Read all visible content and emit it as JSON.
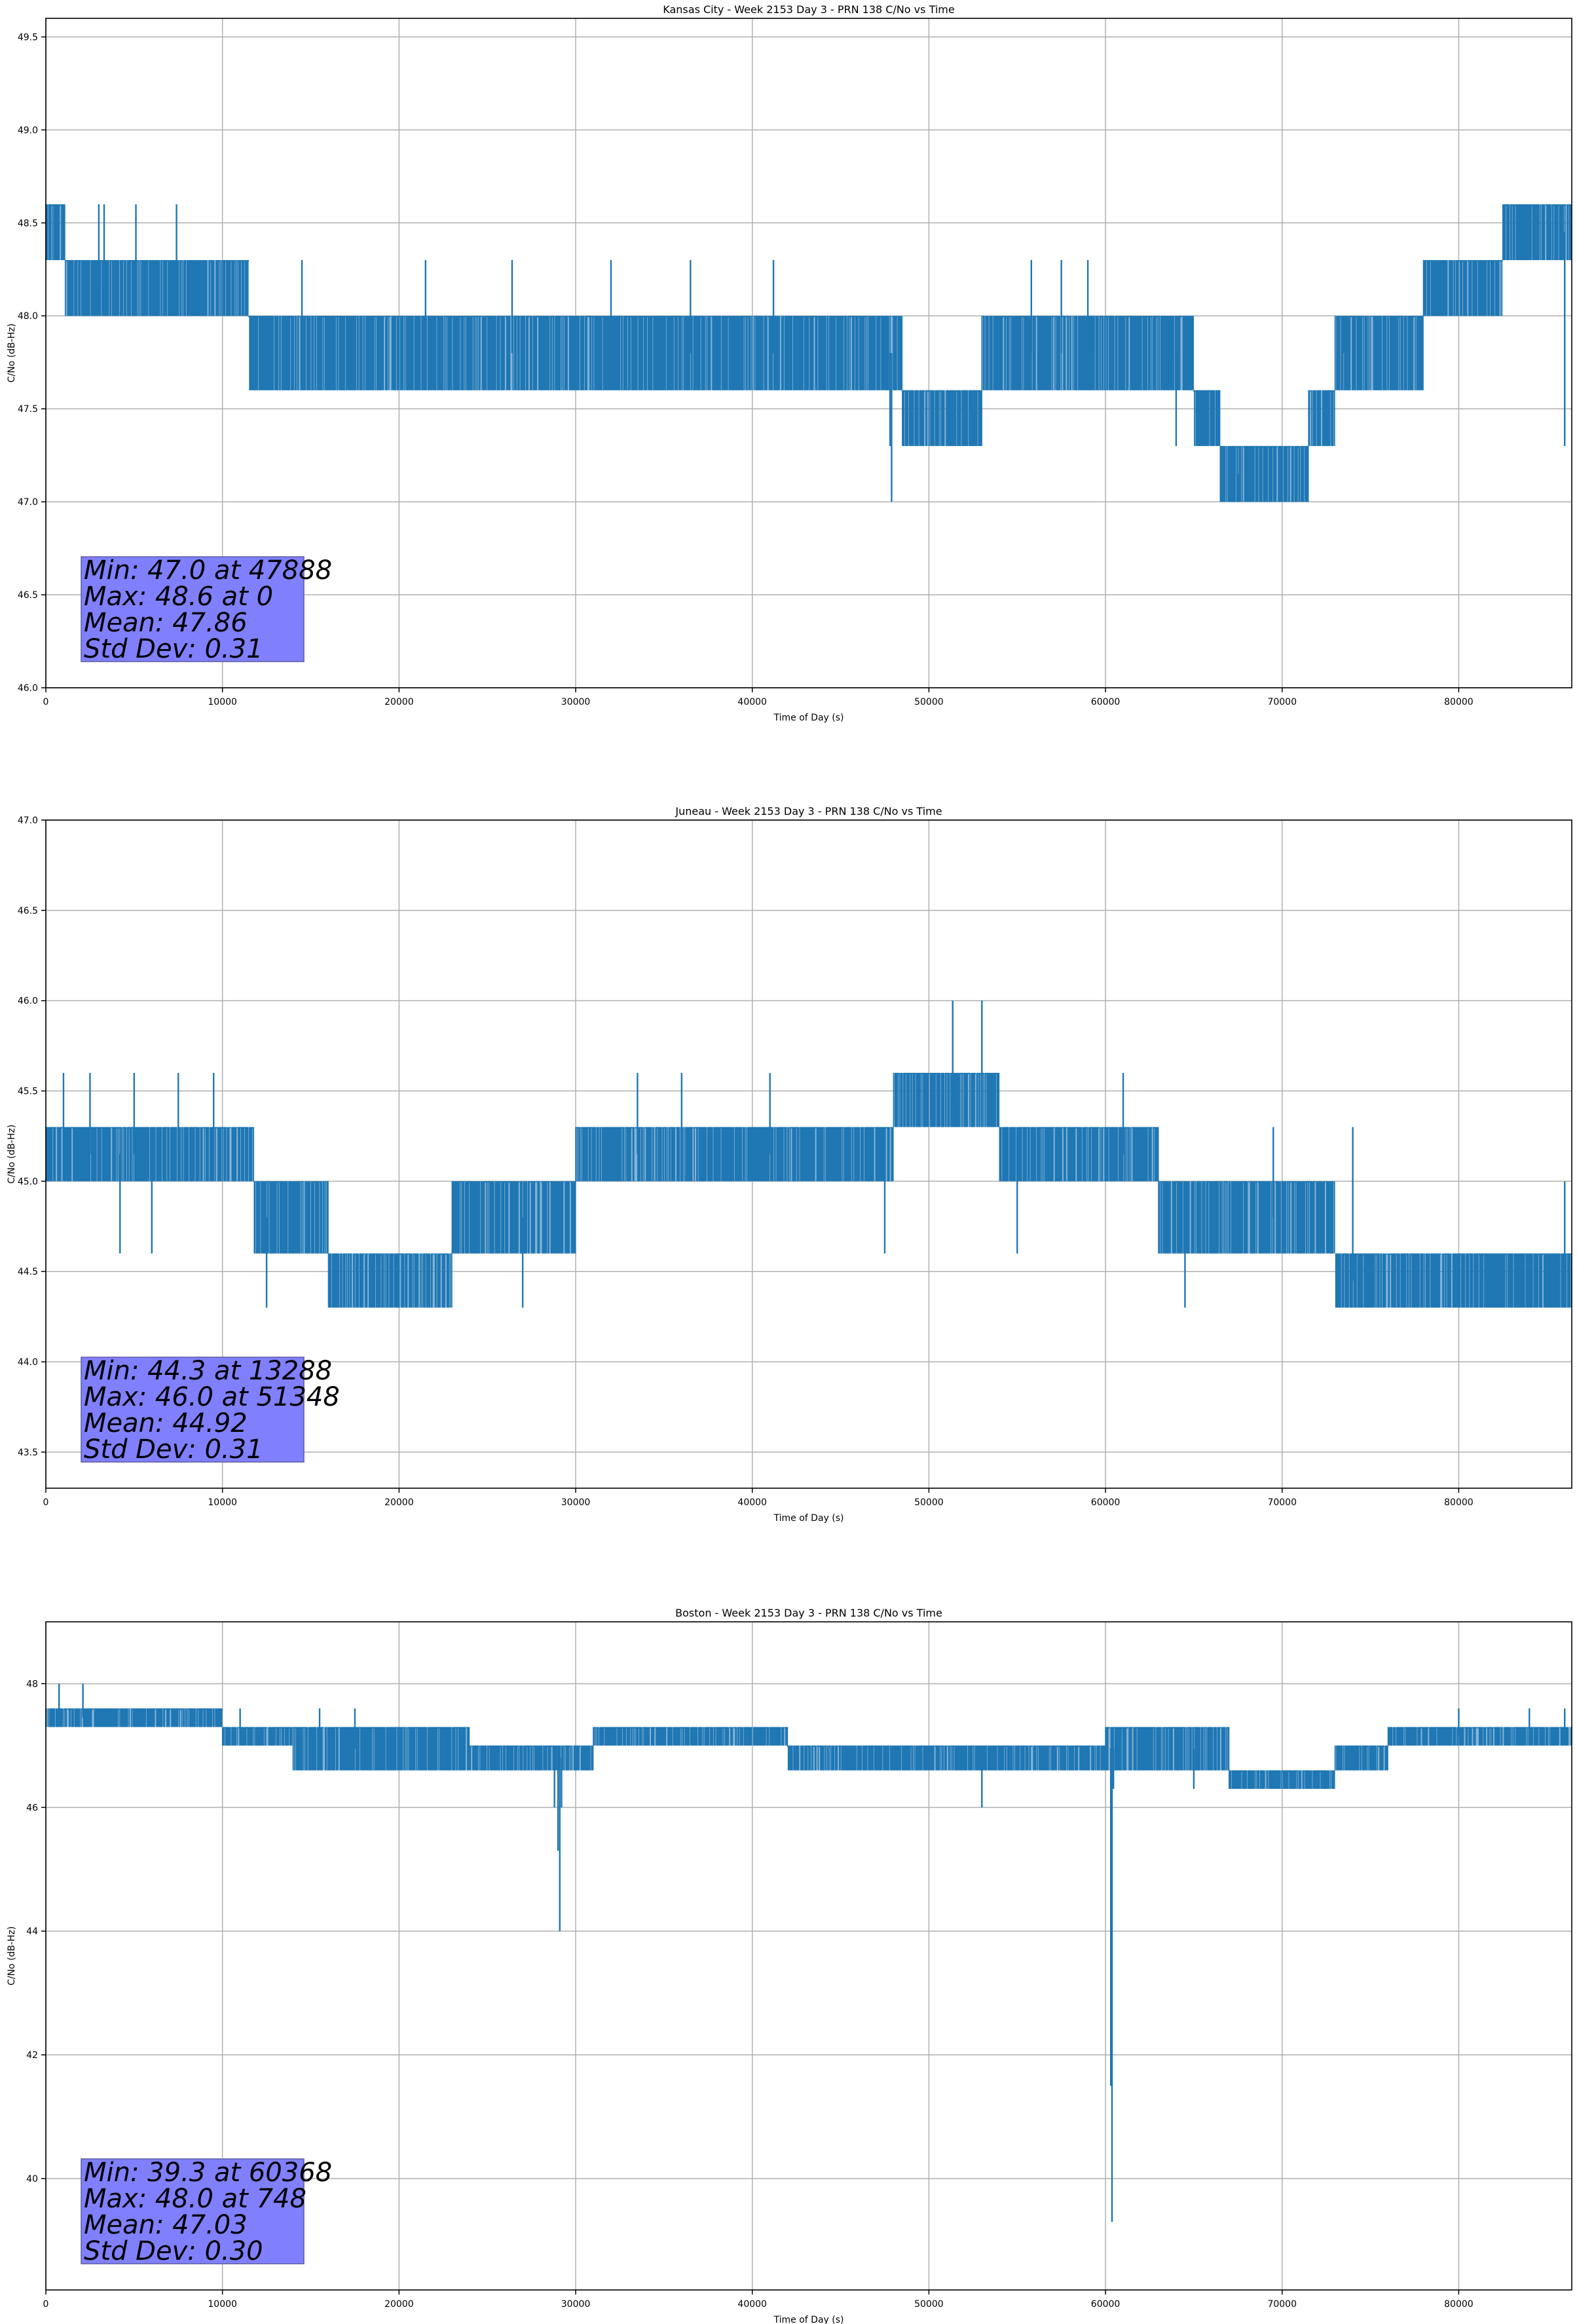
{
  "figure": {
    "background": "#ffffff"
  },
  "style": {
    "line_color": "#1f77b4",
    "grid_color": "#b0b0b0",
    "stats_box_color": "#8080ff"
  },
  "chart_data": [
    {
      "type": "line",
      "title": "Kansas City - Week 2153 Day 3 - PRN 138 C/No vs Time",
      "xlabel": "Time of Day (s)",
      "ylabel": "C/No (dB-Hz)",
      "xlim": [
        0,
        86400
      ],
      "ylim": [
        46.0,
        49.6
      ],
      "xticks": [
        0,
        10000,
        20000,
        30000,
        40000,
        50000,
        60000,
        70000,
        80000
      ],
      "xtick_labels": [
        "0",
        "10000",
        "20000",
        "30000",
        "40000",
        "50000",
        "60000",
        "70000",
        "80000"
      ],
      "yticks": [
        46.0,
        46.5,
        47.0,
        47.5,
        48.0,
        48.5,
        49.0,
        49.5
      ],
      "ytick_labels": [
        "46.0",
        "46.5",
        "47.0",
        "47.5",
        "48.0",
        "48.5",
        "49.0",
        "49.5"
      ],
      "grid": true,
      "stats": [
        "Min: 47.0 at 47888",
        "Max: 48.6 at 0",
        "Mean: 47.86",
        "Std Dev: 0.31"
      ],
      "series": [
        {
          "segments": [
            {
              "x": [
                0,
                1100
              ],
              "levels": [
                48.3,
                48.6
              ]
            },
            {
              "x": [
                1100,
                11500
              ],
              "levels": [
                48.0,
                48.3
              ]
            },
            {
              "x": [
                11500,
                48500
              ],
              "levels": [
                47.6,
                48.0
              ]
            },
            {
              "x": [
                48500,
                53000
              ],
              "levels": [
                47.3,
                47.6
              ]
            },
            {
              "x": [
                53000,
                65000
              ],
              "levels": [
                47.6,
                48.0
              ]
            },
            {
              "x": [
                65000,
                66500
              ],
              "levels": [
                47.3,
                47.6
              ]
            },
            {
              "x": [
                66500,
                71500
              ],
              "levels": [
                47.0,
                47.3
              ]
            },
            {
              "x": [
                71500,
                73000
              ],
              "levels": [
                47.3,
                47.6
              ]
            },
            {
              "x": [
                73000,
                78000
              ],
              "levels": [
                47.6,
                48.0
              ]
            },
            {
              "x": [
                78000,
                82500
              ],
              "levels": [
                48.0,
                48.3
              ]
            },
            {
              "x": [
                82500,
                86400
              ],
              "levels": [
                48.3,
                48.6
              ]
            }
          ],
          "spikes": [
            [
              3000,
              48.6
            ],
            [
              3300,
              48.6
            ],
            [
              5100,
              48.6
            ],
            [
              7400,
              48.6
            ],
            [
              14500,
              48.3
            ],
            [
              21500,
              48.3
            ],
            [
              26400,
              48.3
            ],
            [
              32000,
              48.3
            ],
            [
              36500,
              48.3
            ],
            [
              41200,
              48.3
            ],
            [
              47800,
              47.3
            ],
            [
              47888,
              47.0
            ],
            [
              52500,
              47.3
            ],
            [
              55800,
              48.3
            ],
            [
              57500,
              48.3
            ],
            [
              59000,
              48.3
            ],
            [
              64000,
              47.3
            ],
            [
              67500,
              47.0
            ],
            [
              73500,
              48.0
            ],
            [
              83500,
              48.6
            ],
            [
              86000,
              47.3
            ]
          ]
        }
      ]
    },
    {
      "type": "line",
      "title": "Juneau - Week 2153 Day 3 - PRN 138 C/No vs Time",
      "xlabel": "Time of Day (s)",
      "ylabel": "C/No (dB-Hz)",
      "xlim": [
        0,
        86400
      ],
      "ylim": [
        43.3,
        47.0
      ],
      "xticks": [
        0,
        10000,
        20000,
        30000,
        40000,
        50000,
        60000,
        70000,
        80000
      ],
      "xtick_labels": [
        "0",
        "10000",
        "20000",
        "30000",
        "40000",
        "50000",
        "60000",
        "70000",
        "80000"
      ],
      "yticks": [
        43.5,
        44.0,
        44.5,
        45.0,
        45.5,
        46.0,
        46.5,
        47.0
      ],
      "ytick_labels": [
        "43.5",
        "44.0",
        "44.5",
        "45.0",
        "45.5",
        "46.0",
        "46.5",
        "47.0"
      ],
      "grid": true,
      "stats": [
        "Min: 44.3 at 13288",
        "Max: 46.0 at 51348",
        "Mean: 44.92",
        "Std Dev: 0.31"
      ],
      "series": [
        {
          "segments": [
            {
              "x": [
                0,
                11800
              ],
              "levels": [
                45.0,
                45.3
              ]
            },
            {
              "x": [
                11800,
                16000
              ],
              "levels": [
                44.6,
                45.0
              ]
            },
            {
              "x": [
                16000,
                23000
              ],
              "levels": [
                44.3,
                44.6
              ]
            },
            {
              "x": [
                23000,
                30000
              ],
              "levels": [
                44.6,
                45.0
              ]
            },
            {
              "x": [
                30000,
                48000
              ],
              "levels": [
                45.0,
                45.3
              ]
            },
            {
              "x": [
                48000,
                54000
              ],
              "levels": [
                45.3,
                45.6
              ]
            },
            {
              "x": [
                54000,
                63000
              ],
              "levels": [
                45.0,
                45.3
              ]
            },
            {
              "x": [
                63000,
                73000
              ],
              "levels": [
                44.6,
                45.0
              ]
            },
            {
              "x": [
                73000,
                86400
              ],
              "levels": [
                44.3,
                44.6
              ]
            }
          ],
          "spikes": [
            [
              1000,
              45.6
            ],
            [
              2500,
              45.6
            ],
            [
              5000,
              45.6
            ],
            [
              7500,
              45.6
            ],
            [
              9500,
              45.6
            ],
            [
              4200,
              44.6
            ],
            [
              6000,
              44.6
            ],
            [
              12500,
              44.3
            ],
            [
              27000,
              44.3
            ],
            [
              33500,
              45.6
            ],
            [
              36000,
              45.6
            ],
            [
              41000,
              45.6
            ],
            [
              47500,
              44.6
            ],
            [
              51348,
              46.0
            ],
            [
              53000,
              46.0
            ],
            [
              55000,
              44.6
            ],
            [
              61000,
              45.6
            ],
            [
              64500,
              44.3
            ],
            [
              69500,
              45.3
            ],
            [
              74000,
              45.3
            ],
            [
              82000,
              44.6
            ],
            [
              86000,
              45.0
            ]
          ]
        }
      ]
    },
    {
      "type": "line",
      "title": "Boston - Week 2153 Day 3 - PRN 138 C/No vs Time",
      "xlabel": "Time of Day (s)",
      "ylabel": "C/No (dB-Hz)",
      "xlim": [
        0,
        86400
      ],
      "ylim": [
        38.2,
        49.0
      ],
      "xticks": [
        0,
        10000,
        20000,
        30000,
        40000,
        50000,
        60000,
        70000,
        80000
      ],
      "xtick_labels": [
        "0",
        "10000",
        "20000",
        "30000",
        "40000",
        "50000",
        "60000",
        "70000",
        "80000"
      ],
      "yticks": [
        40,
        42,
        44,
        46,
        48
      ],
      "ytick_labels": [
        "40",
        "42",
        "44",
        "46",
        "48"
      ],
      "grid": true,
      "stats": [
        "Min: 39.3 at 60368",
        "Max: 48.0 at 748",
        "Mean: 47.03",
        "Std Dev: 0.30"
      ],
      "series": [
        {
          "segments": [
            {
              "x": [
                0,
                10000
              ],
              "levels": [
                47.3,
                47.6
              ]
            },
            {
              "x": [
                10000,
                14000
              ],
              "levels": [
                47.0,
                47.3
              ]
            },
            {
              "x": [
                14000,
                24000
              ],
              "levels": [
                46.6,
                47.3
              ]
            },
            {
              "x": [
                24000,
                31000
              ],
              "levels": [
                46.6,
                47.0
              ]
            },
            {
              "x": [
                31000,
                42000
              ],
              "levels": [
                47.0,
                47.3
              ]
            },
            {
              "x": [
                42000,
                60000
              ],
              "levels": [
                46.6,
                47.0
              ]
            },
            {
              "x": [
                60000,
                67000
              ],
              "levels": [
                46.6,
                47.3
              ]
            },
            {
              "x": [
                67000,
                73000
              ],
              "levels": [
                46.3,
                46.6
              ]
            },
            {
              "x": [
                73000,
                76000
              ],
              "levels": [
                46.6,
                47.0
              ]
            },
            {
              "x": [
                76000,
                86400
              ],
              "levels": [
                47.0,
                47.3
              ]
            }
          ],
          "spikes": [
            [
              748,
              48.0
            ],
            [
              2100,
              48.0
            ],
            [
              11000,
              47.6
            ],
            [
              15500,
              47.6
            ],
            [
              17500,
              47.6
            ],
            [
              28800,
              46.0
            ],
            [
              29000,
              45.3
            ],
            [
              29100,
              44.0
            ],
            [
              29200,
              46.0
            ],
            [
              53000,
              46.0
            ],
            [
              60300,
              41.5
            ],
            [
              60368,
              39.3
            ],
            [
              60450,
              46.3
            ],
            [
              65000,
              46.3
            ],
            [
              80000,
              47.6
            ],
            [
              84000,
              47.6
            ],
            [
              86000,
              47.6
            ]
          ]
        }
      ]
    }
  ]
}
